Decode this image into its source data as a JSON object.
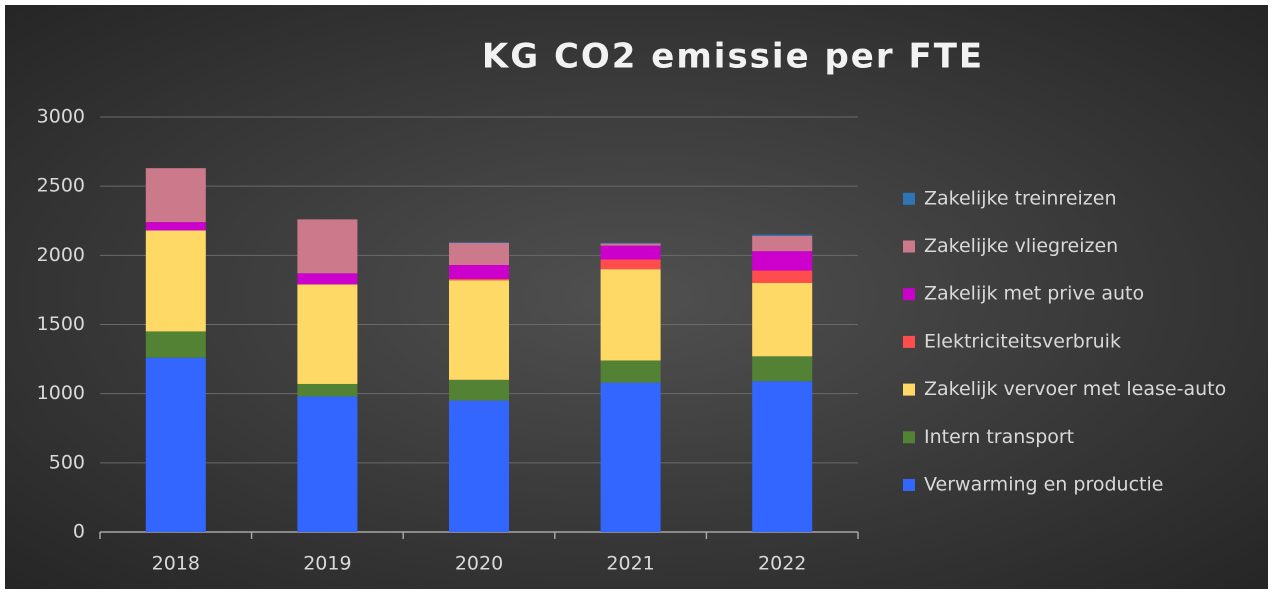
{
  "chart_data": {
    "type": "stacked_bar",
    "title": "KG CO2 emissie per FTE",
    "categories": [
      "2018",
      "2019",
      "2020",
      "2021",
      "2022"
    ],
    "series": [
      {
        "name": "Verwarming en productie",
        "color": "#3366ff",
        "values": [
          1260,
          980,
          950,
          1080,
          1090
        ]
      },
      {
        "name": "Intern transport",
        "color": "#548235",
        "values": [
          190,
          90,
          150,
          160,
          180
        ]
      },
      {
        "name": "Zakelijk vervoer met lease-auto",
        "color": "#ffd966",
        "values": [
          730,
          720,
          720,
          660,
          530
        ]
      },
      {
        "name": "Elektriciteitsverbruik",
        "color": "#ff4d4d",
        "values": [
          0,
          0,
          10,
          70,
          90
        ]
      },
      {
        "name": "Zakelijk met prive auto",
        "color": "#cc00cc",
        "values": [
          60,
          80,
          100,
          100,
          140
        ]
      },
      {
        "name": "Zakelijke vliegreizen",
        "color": "#cc7a8b",
        "values": [
          390,
          390,
          160,
          15,
          110
        ]
      },
      {
        "name": "Zakelijke treinreizen",
        "color": "#2e75b6",
        "values": [
          0,
          0,
          5,
          5,
          10
        ]
      }
    ],
    "ylim": [
      0,
      3000
    ],
    "yticks": [
      0,
      500,
      1000,
      1500,
      2000,
      2500,
      3000
    ],
    "grid": true,
    "legend": "right"
  }
}
